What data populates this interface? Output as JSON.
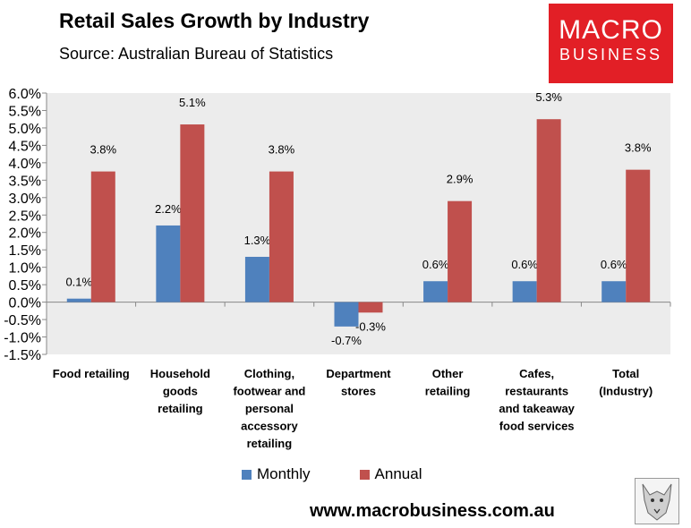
{
  "header": {
    "title": "Retail Sales Growth by Industry",
    "subtitle": "Source: Australian Bureau of Statistics"
  },
  "logo": {
    "line1": "MACRO",
    "line2": "BUSINESS"
  },
  "footer": {
    "url": "www.macrobusiness.com.au"
  },
  "colors": {
    "monthly": "#4f81bd",
    "annual": "#c0504d",
    "plot_bg": "#ececec",
    "logo_bg": "#e21f26"
  },
  "chart_data": {
    "type": "bar",
    "title": "Retail Sales Growth by Industry",
    "categories": [
      [
        "Food retailing"
      ],
      [
        "Household",
        "goods",
        "retailing"
      ],
      [
        "Clothing,",
        "footwear and",
        "personal",
        "accessory",
        "retailing"
      ],
      [
        "Department",
        "stores"
      ],
      [
        "Other",
        "retailing"
      ],
      [
        "Cafes,",
        "restaurants",
        "and takeaway",
        "food services"
      ],
      [
        "Total",
        "(Industry)"
      ]
    ],
    "series": [
      {
        "name": "Monthly",
        "values": [
          0.1,
          2.2,
          1.3,
          -0.7,
          0.6,
          0.6,
          0.6
        ],
        "labels": [
          "0.1%",
          "2.2%",
          "1.3%",
          "-0.7%",
          "0.6%",
          "0.6%",
          "0.6%"
        ]
      },
      {
        "name": "Annual",
        "values": [
          3.75,
          5.1,
          3.75,
          -0.3,
          2.9,
          5.25,
          3.8
        ],
        "labels": [
          "3.8%",
          "5.1%",
          "3.8%",
          "-0.3%",
          "2.9%",
          "5.3%",
          "3.8%"
        ]
      }
    ],
    "ylim": [
      -1.5,
      6.0
    ],
    "yticks": [
      -1.5,
      -1.0,
      -0.5,
      0.0,
      0.5,
      1.0,
      1.5,
      2.0,
      2.5,
      3.0,
      3.5,
      4.0,
      4.5,
      5.0,
      5.5,
      6.0
    ],
    "ytick_labels": [
      "-1.5%",
      "-1.0%",
      "-0.5%",
      "0.0%",
      "0.5%",
      "1.0%",
      "1.5%",
      "2.0%",
      "2.5%",
      "3.0%",
      "3.5%",
      "4.0%",
      "4.5%",
      "5.0%",
      "5.5%",
      "6.0%"
    ],
    "legend": "bottom"
  }
}
